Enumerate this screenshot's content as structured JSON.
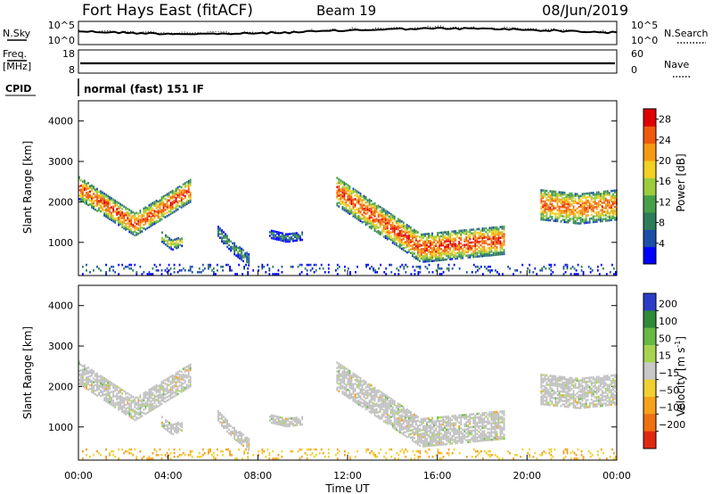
{
  "header": {
    "station": "Fort Hays East (fitACF)",
    "beam": "Beam 19",
    "date": "08/Jun/2019"
  },
  "sky_panel": {
    "left_label": "N.Sky",
    "left_ticks": [
      "10^5",
      "10^0"
    ],
    "right_label": "N.Search",
    "right_ticks": [
      "10^5",
      "10^0"
    ]
  },
  "freq_panel": {
    "left_label_1": "Freq.",
    "left_label_2": "[MHz]",
    "left_ticks": [
      "18",
      "8"
    ],
    "right_label": "Nave",
    "right_ticks": [
      "60",
      "0"
    ]
  },
  "cpid": {
    "label": "CPID",
    "mode": "normal (fast) 151 IF"
  },
  "colors": {
    "power_scale": [
      "#0000ff",
      "#1c4fa8",
      "#2e7d5a",
      "#46a04a",
      "#9ccd3c",
      "#f2d024",
      "#f59a12",
      "#ee5a0c",
      "#e00000"
    ],
    "velocity_scale": [
      "#2a3cc8",
      "#2f8a3a",
      "#67b844",
      "#a6d450",
      "#c8c8c8",
      "#f0d030",
      "#f5a21a",
      "#ef7010",
      "#e02810"
    ],
    "ground_scatter": "#c0c0c0"
  },
  "chart_data": [
    {
      "type": "heatmap",
      "title": "",
      "xlabel": "",
      "ylabel": "Slant Range [km]",
      "xlim": [
        "00:00",
        "00:00"
      ],
      "ylim": [
        180,
        4500
      ],
      "y_ticks": [
        1000,
        2000,
        3000,
        4000
      ],
      "colorbar": {
        "label": "Power [dB]",
        "ticks": [
          4,
          8,
          12,
          16,
          20,
          24,
          28
        ],
        "range": [
          0,
          30
        ]
      },
      "echo_regions": [
        {
          "name": "arc",
          "t_start": 0.0,
          "t_end": 5.0,
          "range_top_start": 2600,
          "range_top_mid": 1700,
          "range_top_end": 2550,
          "thickness": 550,
          "peak_power": 30
        },
        {
          "name": "blob",
          "t_start": 3.7,
          "t_end": 4.6,
          "range_top_start": 1250,
          "range_top_mid": 1050,
          "range_top_end": 1150,
          "thickness": 250,
          "peak_power": 22
        },
        {
          "name": "patch",
          "t_start": 6.2,
          "t_end": 7.6,
          "range_top_start": 1400,
          "range_top_mid": 1000,
          "range_top_end": 700,
          "thickness": 300,
          "peak_power": 14
        },
        {
          "name": "patch",
          "t_start": 8.5,
          "t_end": 10.0,
          "range_top_start": 1300,
          "range_top_mid": 1200,
          "range_top_end": 1250,
          "thickness": 200,
          "peak_power": 12
        },
        {
          "name": "band",
          "t_start": 11.5,
          "t_end": 19.0,
          "range_top_start": 2600,
          "range_top_mid": 1200,
          "range_top_end": 1400,
          "thickness": 700,
          "peak_power": 30
        },
        {
          "name": "band",
          "t_start": 20.6,
          "t_end": 24.0,
          "range_top_start": 2300,
          "range_top_mid": 2200,
          "range_top_end": 2300,
          "thickness": 750,
          "peak_power": 28
        },
        {
          "name": "near-range",
          "t_start": 0.0,
          "t_end": 24.0,
          "range_top_start": 450,
          "range_top_mid": 450,
          "range_top_end": 450,
          "thickness": 250,
          "peak_power": 10
        }
      ]
    },
    {
      "type": "heatmap",
      "title": "",
      "xlabel": "Time UT",
      "ylabel": "Slant Range [km]",
      "xlim": [
        "00:00",
        "00:00"
      ],
      "ylim": [
        180,
        4500
      ],
      "x_ticks": [
        "00:00",
        "04:00",
        "08:00",
        "12:00",
        "16:00",
        "20:00",
        "00:00"
      ],
      "y_ticks": [
        1000,
        2000,
        3000,
        4000
      ],
      "colorbar": {
        "label": "Velocity [m s",
        "label_exponent": "-1",
        "label_suffix": "]",
        "ticks": [
          "200",
          "100",
          "50",
          "15",
          "−15",
          "−50",
          "−100",
          "−200"
        ]
      },
      "notes": "same echo regions as power panel, mostly ground scatter (grey) with near-zero velocities"
    }
  ]
}
